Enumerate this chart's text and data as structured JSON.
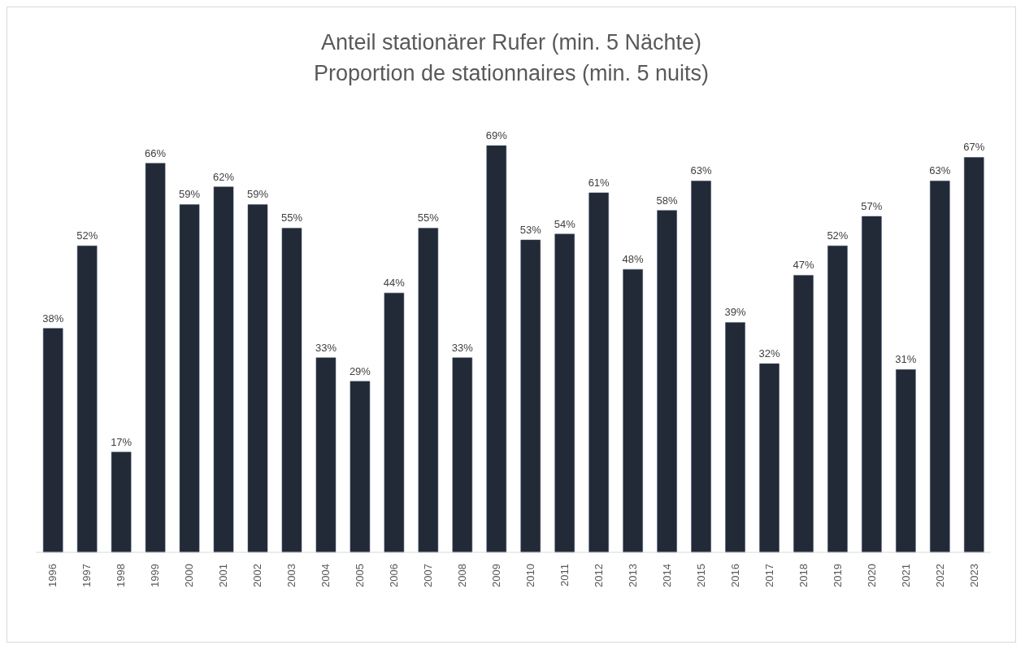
{
  "chart_data": {
    "type": "bar",
    "title": "Anteil stationärer Rufer (min. 5 Nächte)\nProportion de stationnaires (min. 5 nuits)",
    "categories": [
      "1996",
      "1997",
      "1998",
      "1999",
      "2000",
      "2001",
      "2002",
      "2003",
      "2004",
      "2005",
      "2006",
      "2007",
      "2008",
      "2009",
      "2010",
      "2011",
      "2012",
      "2013",
      "2014",
      "2015",
      "2016",
      "2017",
      "2018",
      "2019",
      "2020",
      "2021",
      "2022",
      "2023"
    ],
    "values": [
      38,
      52,
      17,
      66,
      59,
      62,
      59,
      55,
      33,
      29,
      44,
      55,
      33,
      69,
      53,
      54,
      61,
      48,
      58,
      63,
      39,
      32,
      47,
      52,
      57,
      31,
      63,
      67
    ],
    "value_labels": [
      "38%",
      "52%",
      "17%",
      "66%",
      "59%",
      "62%",
      "59%",
      "55%",
      "33%",
      "29%",
      "44%",
      "55%",
      "33%",
      "69%",
      "53%",
      "54%",
      "61%",
      "48%",
      "58%",
      "63%",
      "39%",
      "32%",
      "47%",
      "52%",
      "57%",
      "31%",
      "63%",
      "67%"
    ],
    "color": "#222a38",
    "tick_labels": "x"
  }
}
